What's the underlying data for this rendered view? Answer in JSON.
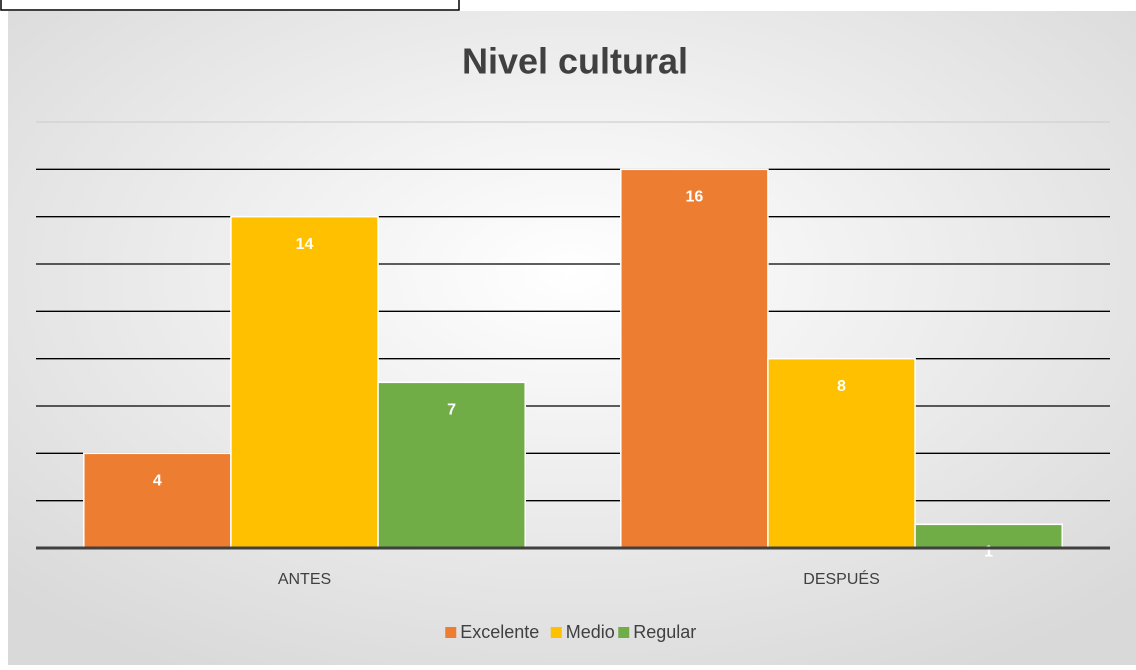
{
  "chart_data": {
    "type": "bar",
    "title": "Nivel cultural",
    "categories": [
      "ANTES",
      "DESPUÉS"
    ],
    "series": [
      {
        "name": "Excelente",
        "color": "#ed7d31",
        "values": [
          4,
          16
        ]
      },
      {
        "name": "Medio",
        "color": "#ffc000",
        "values": [
          14,
          8
        ]
      },
      {
        "name": "Regular",
        "color": "#70ad47",
        "values": [
          7,
          1
        ]
      }
    ],
    "ylim": [
      0,
      18
    ],
    "yticks": [
      0,
      2,
      4,
      6,
      8,
      10,
      12,
      14,
      16,
      18
    ],
    "grid": true,
    "legend": "bottom"
  }
}
